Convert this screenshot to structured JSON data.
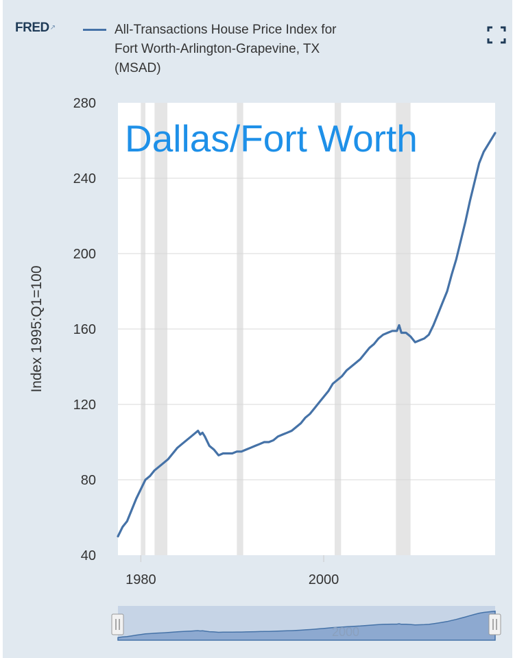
{
  "header": {
    "logo": "FRED",
    "title_lines": [
      "All-Transactions House Price Index for",
      "Fort Worth-Arlington-Grapevine, TX",
      "(MSAD)"
    ],
    "icons": [
      "fred-spark-icon",
      "legend-line-icon",
      "fullscreen-icon"
    ]
  },
  "chart_data": {
    "type": "line",
    "title": "All-Transactions House Price Index for Fort Worth-Arlington-Grapevine, TX (MSAD)",
    "annotation": "Dallas/Fort Worth",
    "ylabel": "Index 1995:Q1=100",
    "xlabel": "",
    "ylim": [
      40,
      280
    ],
    "xlim": [
      1977.5,
      2018.75
    ],
    "yticks": [
      40,
      80,
      120,
      160,
      200,
      240,
      280
    ],
    "xticks": [
      1980,
      2000
    ],
    "grid": true,
    "line_color": "#4572a7",
    "recessions": [
      [
        1980.0,
        1980.5
      ],
      [
        1981.5,
        1982.9
      ],
      [
        1990.5,
        1991.2
      ],
      [
        2001.2,
        2001.9
      ],
      [
        2007.9,
        2009.5
      ]
    ],
    "series": [
      {
        "name": "All-Transactions House Price Index for Fort Worth-Arlington-Grapevine, TX (MSAD)",
        "x": [
          1977.5,
          1978.0,
          1978.5,
          1979.0,
          1979.5,
          1980.0,
          1980.5,
          1981.0,
          1981.5,
          1982.0,
          1982.5,
          1983.0,
          1983.5,
          1984.0,
          1984.5,
          1985.0,
          1985.5,
          1986.0,
          1986.25,
          1986.5,
          1986.75,
          1987.0,
          1987.5,
          1988.0,
          1988.5,
          1989.0,
          1989.5,
          1990.0,
          1990.5,
          1991.0,
          1991.5,
          1992.0,
          1992.5,
          1993.0,
          1993.5,
          1994.0,
          1994.5,
          1995.0,
          1995.5,
          1996.0,
          1996.5,
          1997.0,
          1997.5,
          1998.0,
          1998.5,
          1999.0,
          1999.5,
          2000.0,
          2000.5,
          2001.0,
          2001.5,
          2002.0,
          2002.5,
          2003.0,
          2003.5,
          2004.0,
          2004.5,
          2005.0,
          2005.5,
          2006.0,
          2006.5,
          2007.0,
          2007.5,
          2008.0,
          2008.25,
          2008.5,
          2009.0,
          2009.5,
          2010.0,
          2010.5,
          2011.0,
          2011.5,
          2012.0,
          2012.5,
          2013.0,
          2013.5,
          2014.0,
          2014.5,
          2015.0,
          2015.5,
          2016.0,
          2016.5,
          2017.0,
          2017.5,
          2018.0,
          2018.5,
          2018.75
        ],
        "y": [
          50,
          55,
          58,
          64,
          70,
          75,
          80,
          82,
          85,
          87,
          89,
          91,
          94,
          97,
          99,
          101,
          103,
          105,
          106,
          104,
          105,
          103,
          98,
          96,
          93,
          94,
          94,
          94,
          95,
          95,
          96,
          97,
          98,
          99,
          100,
          100,
          101,
          103,
          104,
          105,
          106,
          108,
          110,
          113,
          115,
          118,
          121,
          124,
          127,
          131,
          133,
          135,
          138,
          140,
          142,
          144,
          147,
          150,
          152,
          155,
          157,
          158,
          159,
          159,
          162,
          158,
          158,
          156,
          153,
          154,
          155,
          157,
          162,
          168,
          174,
          180,
          189,
          197,
          207,
          217,
          228,
          238,
          248,
          254,
          258,
          262,
          264
        ]
      }
    ]
  }
}
